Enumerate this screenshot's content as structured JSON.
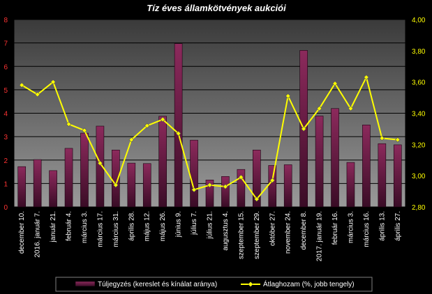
{
  "chart_data": {
    "type": "bar",
    "title": "Tíz éves államkötvények aukciói",
    "categories": [
      "december 10.",
      "2016. január 7.",
      "január 21.",
      "február 4.",
      "március 3.",
      "március 17.",
      "március 31.",
      "április 28.",
      "május 12.",
      "május 26.",
      "június 9.",
      "július 7.",
      "július 21.",
      "augusztus 4.",
      "szeptember 15.",
      "szeptember 29.",
      "október 27.",
      "november 24.",
      "december 8.",
      "2017. január 19.",
      "február 16.",
      "március 3.",
      "március 16.",
      "április 13.",
      "április 27."
    ],
    "series": [
      {
        "name": "Túljegyzés (kereslet és kínálat aránya)",
        "type": "bar",
        "axis": "left",
        "color": "#7b1f4f",
        "values": [
          1.72,
          2.02,
          1.55,
          2.5,
          3.15,
          3.45,
          2.43,
          1.87,
          1.85,
          3.87,
          6.97,
          2.85,
          1.15,
          1.3,
          1.6,
          2.43,
          1.77,
          1.8,
          6.68,
          3.88,
          4.2,
          1.9,
          3.5,
          2.7,
          2.65
        ]
      },
      {
        "name": "Átlaghozam (%, jobb tengely)",
        "type": "line",
        "axis": "right",
        "color": "#ffff00",
        "values": [
          3.58,
          3.52,
          3.6,
          3.33,
          3.29,
          3.08,
          2.94,
          3.23,
          3.32,
          3.36,
          3.27,
          2.91,
          2.94,
          2.93,
          2.99,
          2.85,
          2.97,
          3.51,
          3.3,
          3.43,
          3.59,
          3.43,
          3.63,
          3.24,
          3.23
        ]
      }
    ],
    "yleft": {
      "lim": [
        0,
        8
      ],
      "ticks": [
        "0",
        "1",
        "2",
        "3",
        "4",
        "5",
        "6",
        "7",
        "8"
      ],
      "color": "#ff3333"
    },
    "yright": {
      "lim": [
        2.8,
        4.0
      ],
      "ticks": [
        "2,80",
        "3,00",
        "3,20",
        "3,40",
        "3,60",
        "3,80",
        "4,00"
      ],
      "color": "#ffff00"
    },
    "grid": true,
    "legend": "bottom",
    "plot_background": "#808080"
  }
}
